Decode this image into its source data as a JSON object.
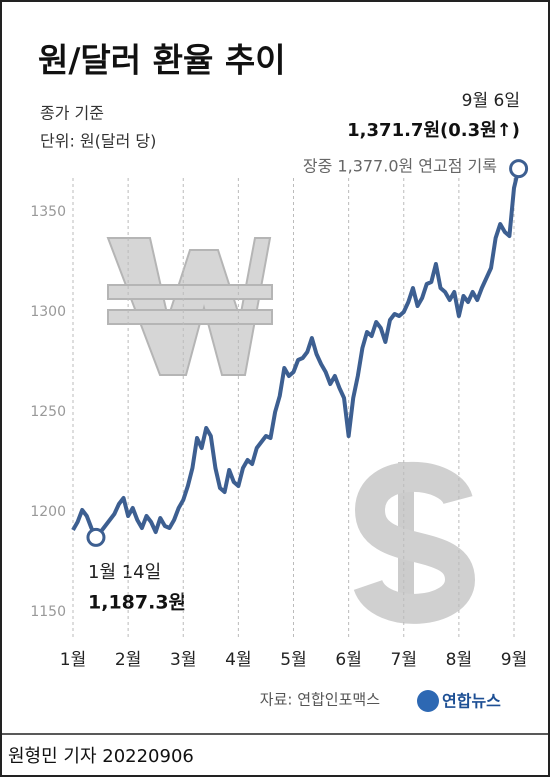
{
  "chart_data": {
    "type": "line",
    "title": "원/달러 환율 추이",
    "subtitle": [
      "종가 기준",
      "단위: 원(달러 당)"
    ],
    "annotations": {
      "end_date": "9월 6일",
      "end_value": "1,371.7원(0.3원↑)",
      "end_note": "장중 1,377.0원 연고점 기록",
      "low_date": "1월 14일",
      "low_value": "1,187.3원"
    },
    "source": "자료: 연합인포맥스",
    "logo": "연합뉴스",
    "byline": "원형민 기자  20220906",
    "categories": [
      "1월",
      null,
      null,
      null,
      null,
      null,
      null,
      null,
      null,
      null,
      null,
      null,
      "2월",
      null,
      null,
      null,
      null,
      null,
      null,
      null,
      null,
      null,
      null,
      null,
      "3월",
      null,
      null,
      null,
      null,
      null,
      null,
      null,
      null,
      null,
      null,
      null,
      "4월",
      null,
      null,
      null,
      null,
      null,
      null,
      null,
      null,
      null,
      null,
      null,
      "5월",
      null,
      null,
      null,
      null,
      null,
      null,
      null,
      null,
      null,
      null,
      null,
      "6월",
      null,
      null,
      null,
      null,
      null,
      null,
      null,
      null,
      null,
      null,
      null,
      "7월",
      null,
      null,
      null,
      null,
      null,
      null,
      null,
      null,
      null,
      null,
      null,
      "8월",
      null,
      null,
      null,
      null,
      null,
      null,
      null,
      null,
      null,
      null,
      null,
      "9월",
      null
    ],
    "values": [
      1191,
      1195,
      1201,
      1198,
      1192,
      1187.3,
      1190,
      1193,
      1196,
      1199,
      1204,
      1207,
      1198,
      1202,
      1196,
      1192,
      1198,
      1195,
      1190,
      1197,
      1193,
      1192,
      1196,
      1202,
      1206,
      1213,
      1222,
      1237,
      1232,
      1242,
      1238,
      1222,
      1212,
      1210,
      1221,
      1215,
      1213,
      1222,
      1226,
      1224,
      1232,
      1235,
      1238,
      1237,
      1250,
      1258,
      1272,
      1268,
      1270,
      1276,
      1277,
      1280,
      1287,
      1279,
      1274,
      1270,
      1264,
      1268,
      1262,
      1257,
      1238,
      1257,
      1268,
      1282,
      1290,
      1288,
      1295,
      1292,
      1285,
      1296,
      1299,
      1298,
      1300,
      1305,
      1312,
      1303,
      1307,
      1314,
      1315,
      1324,
      1312,
      1310,
      1306,
      1310,
      1298,
      1308,
      1305,
      1310,
      1306,
      1312,
      1317,
      1322,
      1337,
      1344,
      1340,
      1338,
      1362,
      1371.7
    ],
    "color": "#3d5f91",
    "ylim": [
      1140,
      1380
    ],
    "yticks": [
      1150,
      1200,
      1250,
      1300,
      1350
    ]
  }
}
